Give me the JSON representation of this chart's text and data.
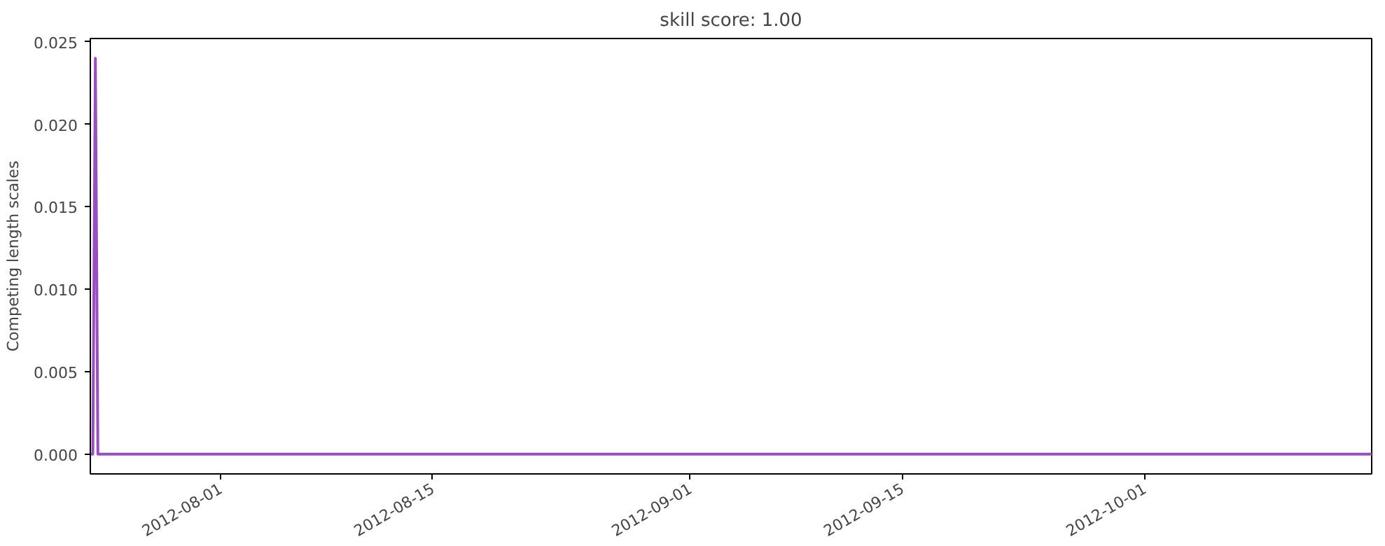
{
  "chart_data": {
    "type": "line",
    "title": "skill score: 1.00",
    "ylabel": "Competing length scales",
    "x": [
      "2012-07-23T10:00",
      "2012-07-23T14:00",
      "2012-07-23T18:00",
      "2012-07-23T22:00",
      "2012-07-24T06:00",
      "2012-10-16T00:00"
    ],
    "series": [
      {
        "color": "#9a4fc0",
        "values": [
          0,
          0,
          0.024,
          0,
          0,
          0
        ]
      }
    ],
    "xlim": [
      "2012-07-23T10:00",
      "2012-10-16T00:00"
    ],
    "xticks": [
      "2012-08-01",
      "2012-08-15",
      "2012-09-01",
      "2012-09-15",
      "2012-10-01"
    ],
    "ylim": [
      -0.0012,
      0.0252
    ],
    "yticks": [
      {
        "value": 0,
        "label": "0.000"
      },
      {
        "value": 0.005,
        "label": "0.005"
      },
      {
        "value": 0.01,
        "label": "0.010"
      },
      {
        "value": 0.015,
        "label": "0.015"
      },
      {
        "value": 0.02,
        "label": "0.020"
      },
      {
        "value": 0.025,
        "label": "0.025"
      }
    ],
    "grid": false,
    "marker": "none",
    "line_style": "solid"
  }
}
